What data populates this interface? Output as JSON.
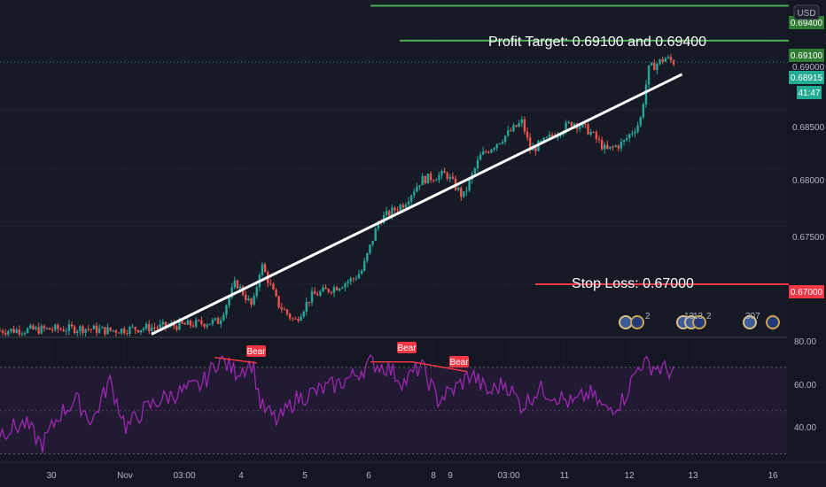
{
  "currency_button": "USD",
  "annotations": {
    "profit_target": "Profit Target: 0.69100 and 0.69400",
    "stop_loss": "Stop Loss: 0.67000"
  },
  "price_tags": {
    "target2": "0.69400",
    "target1": "0.69100",
    "last_price": "0.68915",
    "countdown": "41:47",
    "stop": "0.67000",
    "hidden_level": "0.69000"
  },
  "price_axis_ticks": [
    "0.68500",
    "0.68000",
    "0.67500"
  ],
  "rsi_axis_ticks": [
    "80.00",
    "60.00",
    "40.00"
  ],
  "time_axis_ticks": [
    "30",
    "Nov",
    "03:00",
    "4",
    "5",
    "6",
    "8",
    "9",
    "03:00",
    "11",
    "12",
    "13",
    "16"
  ],
  "divergence_labels": [
    "Bear",
    "Bear",
    "Bear"
  ],
  "event_counts": [
    "2",
    "13",
    "13",
    "2",
    "307"
  ],
  "colors": {
    "background": "#131722",
    "up_candle": "#26a69a",
    "down_candle": "#ef5350",
    "target_line": "#4caf50",
    "target_tag": "#2e7d32",
    "stop_line": "#f23645",
    "last_price": "#22ab94",
    "rsi_line": "#9c27b0",
    "rsi_band": "#2a1a3a",
    "trendline": "#ffffff"
  },
  "chart_data": [
    {
      "type": "candlestick",
      "title": "",
      "ylim": [
        0.6655,
        0.6945
      ],
      "y_ticks": [
        0.685,
        0.68,
        0.675,
        0.67
      ],
      "horizontal_levels": [
        0.694,
        0.691,
        0.67
      ],
      "last_price": 0.68915,
      "trendline": {
        "from": [
          0.18,
          0.6657
        ],
        "to": [
          0.81,
          0.6881
        ]
      },
      "close_path": [
        [
          0.0,
          0.666
        ],
        [
          0.1,
          0.6662
        ],
        [
          0.13,
          0.666
        ],
        [
          0.22,
          0.6665
        ],
        [
          0.26,
          0.6668
        ],
        [
          0.28,
          0.6702
        ],
        [
          0.3,
          0.668
        ],
        [
          0.31,
          0.6718
        ],
        [
          0.33,
          0.6683
        ],
        [
          0.35,
          0.6668
        ],
        [
          0.37,
          0.669
        ],
        [
          0.4,
          0.6698
        ],
        [
          0.42,
          0.6705
        ],
        [
          0.43,
          0.6712
        ],
        [
          0.45,
          0.6755
        ],
        [
          0.48,
          0.677
        ],
        [
          0.5,
          0.679
        ],
        [
          0.53,
          0.6795
        ],
        [
          0.55,
          0.6775
        ],
        [
          0.57,
          0.681
        ],
        [
          0.6,
          0.6828
        ],
        [
          0.62,
          0.684
        ],
        [
          0.63,
          0.6815
        ],
        [
          0.65,
          0.6825
        ],
        [
          0.68,
          0.684
        ],
        [
          0.7,
          0.6832
        ],
        [
          0.72,
          0.6815
        ],
        [
          0.74,
          0.6822
        ],
        [
          0.76,
          0.684
        ],
        [
          0.77,
          0.6885
        ],
        [
          0.79,
          0.6895
        ],
        [
          0.8,
          0.68915
        ]
      ]
    },
    {
      "type": "line",
      "title": "",
      "ylim": [
        27,
        83
      ],
      "y_ticks": [
        80,
        60,
        40
      ],
      "bands": [
        70,
        50,
        30
      ],
      "values_path": [
        [
          0.0,
          40
        ],
        [
          0.03,
          44
        ],
        [
          0.05,
          34
        ],
        [
          0.07,
          48
        ],
        [
          0.09,
          55
        ],
        [
          0.11,
          45
        ],
        [
          0.13,
          64
        ],
        [
          0.15,
          42
        ],
        [
          0.17,
          50
        ],
        [
          0.19,
          55
        ],
        [
          0.21,
          58
        ],
        [
          0.24,
          62
        ],
        [
          0.26,
          74
        ],
        [
          0.28,
          68
        ],
        [
          0.3,
          72
        ],
        [
          0.31,
          52
        ],
        [
          0.33,
          45
        ],
        [
          0.35,
          55
        ],
        [
          0.37,
          58
        ],
        [
          0.4,
          62
        ],
        [
          0.42,
          66
        ],
        [
          0.44,
          72
        ],
        [
          0.46,
          70
        ],
        [
          0.48,
          63
        ],
        [
          0.5,
          71
        ],
        [
          0.52,
          55
        ],
        [
          0.54,
          60
        ],
        [
          0.56,
          67
        ],
        [
          0.58,
          58
        ],
        [
          0.6,
          63
        ],
        [
          0.62,
          52
        ],
        [
          0.64,
          60
        ],
        [
          0.66,
          57
        ],
        [
          0.68,
          53
        ],
        [
          0.7,
          58
        ],
        [
          0.72,
          50
        ],
        [
          0.74,
          55
        ],
        [
          0.76,
          72
        ],
        [
          0.78,
          70
        ],
        [
          0.8,
          68
        ]
      ],
      "divergence_segments": [
        [
          [
            0.255,
            74.5
          ],
          [
            0.305,
            72
          ]
        ],
        [
          [
            0.44,
            72.5
          ],
          [
            0.49,
            72.5
          ],
          [
            0.555,
            68
          ]
        ]
      ]
    }
  ]
}
